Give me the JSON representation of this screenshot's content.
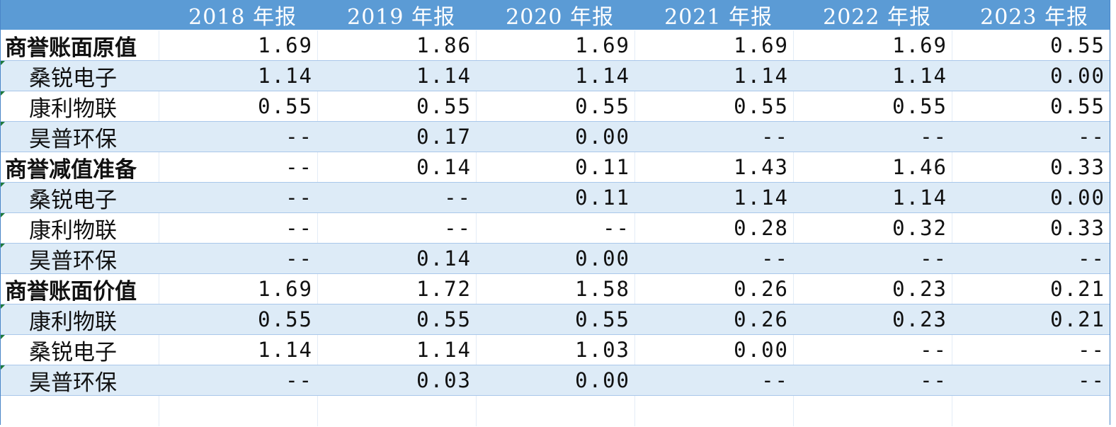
{
  "header": {
    "corner": "",
    "columns": [
      "2018 年报",
      "2019 年报",
      "2020 年报",
      "2021 年报",
      "2022 年报",
      "2023 年报"
    ]
  },
  "rows": [
    {
      "label": "商誉账面原值",
      "values": [
        "1.69",
        "1.86",
        "1.69",
        "1.69",
        "1.69",
        "0.55"
      ]
    },
    {
      "label": "桑锐电子",
      "values": [
        "1.14",
        "1.14",
        "1.14",
        "1.14",
        "1.14",
        "0.00"
      ]
    },
    {
      "label": "康利物联",
      "values": [
        "0.55",
        "0.55",
        "0.55",
        "0.55",
        "0.55",
        "0.55"
      ]
    },
    {
      "label": "昊普环保",
      "values": [
        "--",
        "0.17",
        "0.00",
        "--",
        "--",
        "--"
      ]
    },
    {
      "label": "商誉减值准备",
      "values": [
        "--",
        "0.14",
        "0.11",
        "1.43",
        "1.46",
        "0.33"
      ]
    },
    {
      "label": "桑锐电子",
      "values": [
        "--",
        "--",
        "0.11",
        "1.14",
        "1.14",
        "0.00"
      ]
    },
    {
      "label": "康利物联",
      "values": [
        "--",
        "--",
        "--",
        "0.28",
        "0.32",
        "0.33"
      ]
    },
    {
      "label": "昊普环保",
      "values": [
        "--",
        "0.14",
        "0.00",
        "--",
        "--",
        "--"
      ]
    },
    {
      "label": "商誉账面价值",
      "values": [
        "1.69",
        "1.72",
        "1.58",
        "0.26",
        "0.23",
        "0.21"
      ]
    },
    {
      "label": "康利物联",
      "values": [
        "0.55",
        "0.55",
        "0.55",
        "0.26",
        "0.23",
        "0.21"
      ]
    },
    {
      "label": "桑锐电子",
      "values": [
        "1.14",
        "1.14",
        "1.03",
        "0.00",
        "--",
        "--"
      ]
    },
    {
      "label": "昊普环保",
      "values": [
        "--",
        "0.03",
        "0.00",
        "--",
        "--",
        "--"
      ]
    }
  ],
  "colors": {
    "header_bg": "#5b9bd5",
    "header_text": "#ffffff",
    "band_blue": "#ddebf7",
    "band_white": "#ffffff",
    "grid_line": "#a9c7ea",
    "comment_marker": "#1e7a3c"
  }
}
